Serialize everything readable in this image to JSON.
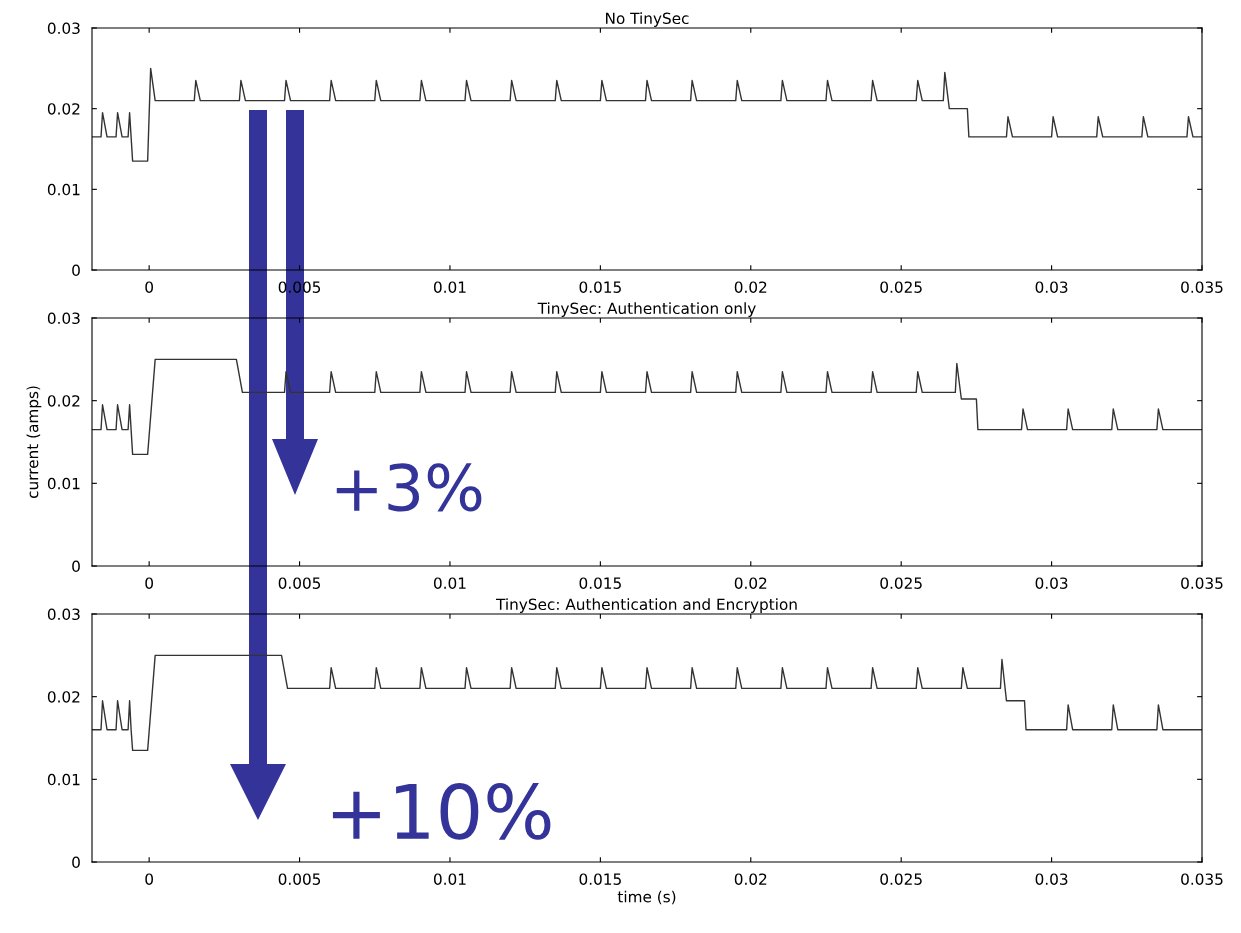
{
  "chart_data": [
    {
      "type": "line",
      "title": "No TinySec",
      "xlim": [
        -0.0019,
        0.035
      ],
      "xticks": [
        0,
        0.005,
        0.01,
        0.015,
        0.02,
        0.025,
        0.03,
        0.035
      ],
      "ylim": [
        0,
        0.03
      ],
      "yticks": [
        0,
        0.01,
        0.02,
        0.03
      ],
      "grid": false,
      "line_style": "solid",
      "series": [
        {
          "color": "#333333",
          "x": [
            -0.0019,
            -0.0016,
            -0.00155,
            -0.0014,
            -0.0011,
            -0.00105,
            -0.0009,
            -0.0007,
            -0.00065,
            -0.0006,
            -0.00055,
            -5e-05,
            5e-05,
            0.0002,
            0.0015,
            0.00155,
            0.0017,
            0.003,
            0.00305,
            0.0032,
            0.0045,
            0.00455,
            0.0047,
            0.006,
            0.00605,
            0.0062,
            0.0075,
            0.00755,
            0.0077,
            0.009,
            0.00905,
            0.0092,
            0.0105,
            0.01055,
            0.0107,
            0.012,
            0.01205,
            0.0122,
            0.0135,
            0.01355,
            0.0137,
            0.015,
            0.01505,
            0.0152,
            0.0165,
            0.01655,
            0.0167,
            0.018,
            0.01805,
            0.0182,
            0.0195,
            0.01955,
            0.0197,
            0.021,
            0.02105,
            0.0212,
            0.0225,
            0.02255,
            0.0227,
            0.024,
            0.02405,
            0.0242,
            0.0255,
            0.02555,
            0.0257,
            0.0264,
            0.02645,
            0.0266,
            0.0272,
            0.02725,
            0.0285,
            0.02855,
            0.0287,
            0.03,
            0.03005,
            0.0302,
            0.0315,
            0.03155,
            0.0317,
            0.033,
            0.03305,
            0.0332,
            0.0345,
            0.03455,
            0.0347,
            0.035
          ],
          "values": [
            0.0165,
            0.0165,
            0.0195,
            0.0165,
            0.0165,
            0.0195,
            0.0165,
            0.0165,
            0.0195,
            0.0165,
            0.0135,
            0.0135,
            0.025,
            0.021,
            0.021,
            0.0235,
            0.021,
            0.021,
            0.0235,
            0.021,
            0.021,
            0.0235,
            0.021,
            0.021,
            0.0235,
            0.021,
            0.021,
            0.0235,
            0.021,
            0.021,
            0.0235,
            0.021,
            0.021,
            0.0235,
            0.021,
            0.021,
            0.0235,
            0.021,
            0.021,
            0.0235,
            0.021,
            0.021,
            0.0235,
            0.021,
            0.021,
            0.0235,
            0.021,
            0.021,
            0.0235,
            0.021,
            0.021,
            0.0235,
            0.021,
            0.021,
            0.0235,
            0.021,
            0.021,
            0.0235,
            0.021,
            0.021,
            0.0235,
            0.021,
            0.021,
            0.0235,
            0.021,
            0.021,
            0.0245,
            0.02,
            0.02,
            0.0165,
            0.0165,
            0.019,
            0.0165,
            0.0165,
            0.019,
            0.0165,
            0.0165,
            0.019,
            0.0165,
            0.0165,
            0.019,
            0.0165,
            0.0165,
            0.019,
            0.0165,
            0.0165
          ]
        }
      ]
    },
    {
      "type": "line",
      "title": "TinySec: Authentication only",
      "ylabel": "current (amps)",
      "xlim": [
        -0.0019,
        0.035
      ],
      "xticks": [
        0,
        0.005,
        0.01,
        0.015,
        0.02,
        0.025,
        0.03,
        0.035
      ],
      "ylim": [
        0,
        0.03
      ],
      "yticks": [
        0,
        0.01,
        0.02,
        0.03
      ],
      "grid": false,
      "line_style": "solid",
      "annotations": [
        "+3%"
      ],
      "series": [
        {
          "color": "#333333",
          "x": [
            -0.0019,
            -0.0016,
            -0.00155,
            -0.0014,
            -0.0011,
            -0.00105,
            -0.0009,
            -0.0007,
            -0.00065,
            -0.0006,
            -0.00055,
            -5e-05,
            0.0002,
            0.0029,
            0.0031,
            0.0045,
            0.00455,
            0.0047,
            0.006,
            0.00605,
            0.0062,
            0.0075,
            0.00755,
            0.0077,
            0.009,
            0.00905,
            0.0092,
            0.0105,
            0.01055,
            0.0107,
            0.012,
            0.01205,
            0.0122,
            0.0135,
            0.01355,
            0.0137,
            0.015,
            0.01505,
            0.0152,
            0.0165,
            0.01655,
            0.0167,
            0.018,
            0.01805,
            0.0182,
            0.0195,
            0.01955,
            0.0197,
            0.021,
            0.02105,
            0.0212,
            0.0225,
            0.02255,
            0.0227,
            0.024,
            0.02405,
            0.0242,
            0.0255,
            0.02555,
            0.0257,
            0.0268,
            0.02685,
            0.027,
            0.0275,
            0.02755,
            0.029,
            0.02905,
            0.0292,
            0.0305,
            0.03055,
            0.0307,
            0.032,
            0.03205,
            0.0322,
            0.0335,
            0.03355,
            0.0337,
            0.035
          ],
          "values": [
            0.0165,
            0.0165,
            0.0195,
            0.0165,
            0.0165,
            0.0195,
            0.0165,
            0.0165,
            0.0195,
            0.0165,
            0.0135,
            0.0135,
            0.025,
            0.025,
            0.021,
            0.021,
            0.0235,
            0.021,
            0.021,
            0.0235,
            0.021,
            0.021,
            0.0235,
            0.021,
            0.021,
            0.0235,
            0.021,
            0.021,
            0.0235,
            0.021,
            0.021,
            0.0235,
            0.021,
            0.021,
            0.0235,
            0.021,
            0.021,
            0.0235,
            0.021,
            0.021,
            0.0235,
            0.021,
            0.021,
            0.0235,
            0.021,
            0.021,
            0.0235,
            0.021,
            0.021,
            0.0235,
            0.021,
            0.021,
            0.0235,
            0.021,
            0.021,
            0.0235,
            0.021,
            0.021,
            0.0235,
            0.021,
            0.021,
            0.0245,
            0.0202,
            0.0202,
            0.0165,
            0.0165,
            0.019,
            0.0165,
            0.0165,
            0.019,
            0.0165,
            0.0165,
            0.019,
            0.0165,
            0.0165,
            0.019,
            0.0165,
            0.0165
          ]
        }
      ]
    },
    {
      "type": "line",
      "title": "TinySec: Authentication and Encryption",
      "xlabel": "time (s)",
      "xlim": [
        -0.0019,
        0.035
      ],
      "xticks": [
        0,
        0.005,
        0.01,
        0.015,
        0.02,
        0.025,
        0.03,
        0.035
      ],
      "ylim": [
        0,
        0.03
      ],
      "yticks": [
        0,
        0.01,
        0.02,
        0.03
      ],
      "grid": false,
      "line_style": "solid",
      "annotations": [
        "+10%"
      ],
      "series": [
        {
          "color": "#333333",
          "x": [
            -0.0019,
            -0.0016,
            -0.00155,
            -0.0014,
            -0.0011,
            -0.00105,
            -0.0009,
            -0.0007,
            -0.00065,
            -0.0006,
            -0.00055,
            -5e-05,
            0.0002,
            0.0044,
            0.0046,
            0.006,
            0.00605,
            0.0062,
            0.0075,
            0.00755,
            0.0077,
            0.009,
            0.00905,
            0.0092,
            0.0105,
            0.01055,
            0.0107,
            0.012,
            0.01205,
            0.0122,
            0.0135,
            0.01355,
            0.0137,
            0.015,
            0.01505,
            0.0152,
            0.0165,
            0.01655,
            0.0167,
            0.018,
            0.01805,
            0.0182,
            0.0195,
            0.01955,
            0.0197,
            0.021,
            0.02105,
            0.0212,
            0.0225,
            0.02255,
            0.0227,
            0.024,
            0.02405,
            0.0242,
            0.0255,
            0.02555,
            0.0257,
            0.027,
            0.02705,
            0.0272,
            0.0283,
            0.02835,
            0.0285,
            0.0291,
            0.02915,
            0.0305,
            0.03055,
            0.0307,
            0.032,
            0.03205,
            0.0322,
            0.0335,
            0.03355,
            0.0337,
            0.035
          ],
          "values": [
            0.016,
            0.016,
            0.0195,
            0.016,
            0.016,
            0.0195,
            0.016,
            0.016,
            0.0195,
            0.016,
            0.0135,
            0.0135,
            0.025,
            0.025,
            0.021,
            0.021,
            0.0235,
            0.021,
            0.021,
            0.0235,
            0.021,
            0.021,
            0.0235,
            0.021,
            0.021,
            0.0235,
            0.021,
            0.021,
            0.0235,
            0.021,
            0.021,
            0.0235,
            0.021,
            0.021,
            0.0235,
            0.021,
            0.021,
            0.0235,
            0.021,
            0.021,
            0.0235,
            0.021,
            0.021,
            0.0235,
            0.021,
            0.021,
            0.0235,
            0.021,
            0.021,
            0.0235,
            0.021,
            0.021,
            0.0235,
            0.021,
            0.021,
            0.0235,
            0.021,
            0.021,
            0.0235,
            0.021,
            0.021,
            0.0245,
            0.0195,
            0.0195,
            0.016,
            0.016,
            0.019,
            0.016,
            0.016,
            0.019,
            0.016,
            0.016,
            0.019,
            0.016,
            0.016
          ]
        }
      ]
    }
  ]
}
